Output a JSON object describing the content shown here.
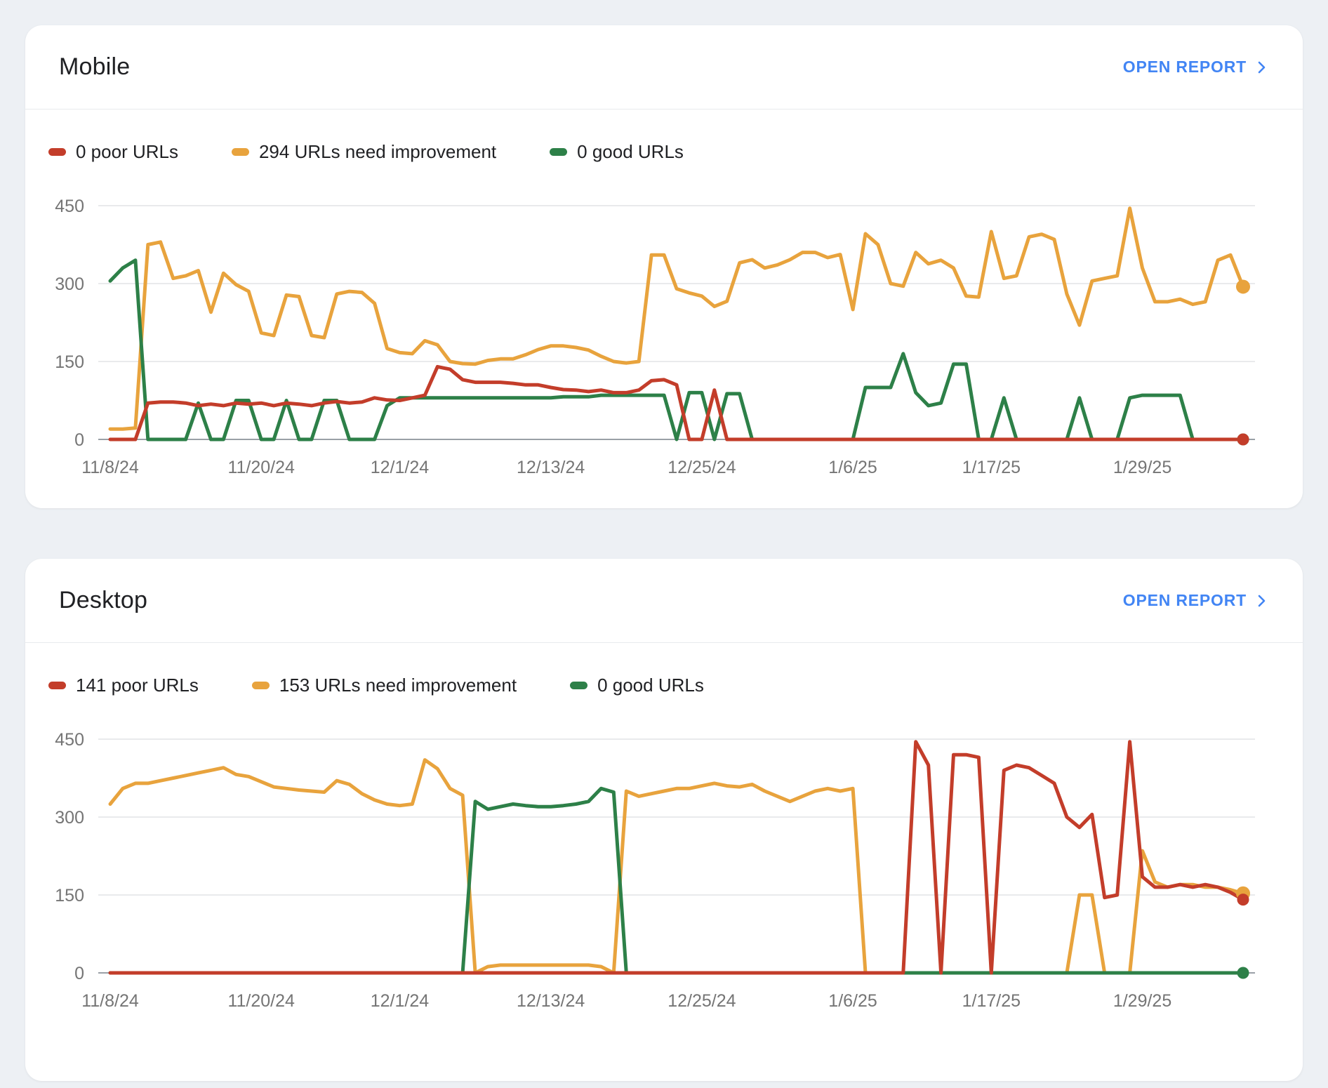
{
  "page": {
    "background_color": "#edf0f4"
  },
  "colors": {
    "poor": "#c33d2a",
    "need_improvement": "#e8a33d",
    "good": "#2d8048",
    "link_blue": "#4285f4",
    "axis_text": "#757575",
    "gridline": "#e9eaec",
    "zero_line": "#9aa0a6"
  },
  "cards": [
    {
      "title": "Mobile",
      "open_report_label": "OPEN REPORT",
      "legend": [
        {
          "label": "0 poor URLs",
          "color": "#c33d2a"
        },
        {
          "label": "294 URLs need improvement",
          "color": "#e8a33d"
        },
        {
          "label": "0 good URLs",
          "color": "#2d8048"
        }
      ],
      "chart_data": {
        "type": "line",
        "title": "Mobile Core Web Vitals URLs over time",
        "x_axis": {
          "tick_labels": [
            "11/8/24",
            "11/20/24",
            "12/1/24",
            "12/13/24",
            "12/25/24",
            "1/6/25",
            "1/17/25",
            "1/29/25"
          ],
          "tick_day_indices": [
            0,
            12,
            23,
            35,
            47,
            59,
            70,
            82
          ],
          "total_days": 90,
          "start_date": "11/8/24"
        },
        "y_axis": {
          "ticks": [
            0,
            150,
            300,
            450
          ],
          "min": 0,
          "max": 475,
          "grid": true
        },
        "series": [
          {
            "name": "URLs need improvement",
            "color": "#e8a33d",
            "dot_radius": 10,
            "final_value": 294,
            "values": [
              20,
              20,
              22,
              375,
              380,
              310,
              315,
              325,
              245,
              320,
              298,
              285,
              205,
              200,
              278,
              275,
              200,
              196,
              280,
              285,
              283,
              262,
              175,
              167,
              165,
              190,
              182,
              150,
              146,
              145,
              152,
              155,
              155,
              163,
              173,
              180,
              180,
              177,
              172,
              160,
              150,
              147,
              150,
              355,
              355,
              290,
              282,
              276,
              256,
              266,
              340,
              346,
              330,
              336,
              346,
              360,
              360,
              350,
              356,
              250,
              396,
              375,
              300,
              295,
              360,
              338,
              345,
              330,
              276,
              274,
              400,
              310,
              315,
              390,
              395,
              385,
              280,
              220,
              305,
              310,
              315,
              445,
              330,
              265,
              265,
              270,
              260,
              265,
              345,
              355,
              294
            ]
          },
          {
            "name": "good URLs",
            "color": "#2d8048",
            "dot_radius": 8.5,
            "final_value": 0,
            "values": [
              305,
              330,
              345,
              0,
              0,
              0,
              0,
              70,
              0,
              0,
              75,
              75,
              0,
              0,
              75,
              0,
              0,
              75,
              75,
              0,
              0,
              0,
              65,
              80,
              80,
              80,
              80,
              80,
              80,
              80,
              80,
              80,
              80,
              80,
              80,
              80,
              82,
              82,
              82,
              85,
              85,
              85,
              85,
              85,
              85,
              0,
              90,
              90,
              0,
              88,
              88,
              0,
              0,
              0,
              0,
              0,
              0,
              0,
              0,
              0,
              100,
              100,
              100,
              165,
              90,
              65,
              70,
              145,
              145,
              0,
              0,
              80,
              0,
              0,
              0,
              0,
              0,
              80,
              0,
              0,
              0,
              80,
              85,
              85,
              85,
              85,
              0,
              0,
              0,
              0,
              0
            ]
          },
          {
            "name": "poor URLs",
            "color": "#c33d2a",
            "dot_radius": 8.5,
            "final_value": 0,
            "values": [
              0,
              0,
              0,
              70,
              72,
              72,
              70,
              65,
              68,
              65,
              70,
              68,
              70,
              65,
              70,
              68,
              65,
              70,
              73,
              70,
              72,
              80,
              76,
              75,
              80,
              85,
              140,
              135,
              115,
              110,
              110,
              110,
              108,
              105,
              105,
              100,
              96,
              95,
              92,
              95,
              90,
              90,
              95,
              113,
              115,
              105,
              0,
              0,
              95,
              0,
              0,
              0,
              0,
              0,
              0,
              0,
              0,
              0,
              0,
              0,
              0,
              0,
              0,
              0,
              0,
              0,
              0,
              0,
              0,
              0,
              0,
              0,
              0,
              0,
              0,
              0,
              0,
              0,
              0,
              0,
              0,
              0,
              0,
              0,
              0,
              0,
              0,
              0,
              0,
              0,
              0
            ]
          }
        ]
      }
    },
    {
      "title": "Desktop",
      "open_report_label": "OPEN REPORT",
      "legend": [
        {
          "label": "141 poor URLs",
          "color": "#c33d2a"
        },
        {
          "label": "153 URLs need improvement",
          "color": "#e8a33d"
        },
        {
          "label": "0 good URLs",
          "color": "#2d8048"
        }
      ],
      "chart_data": {
        "type": "line",
        "title": "Desktop Core Web Vitals URLs over time",
        "x_axis": {
          "tick_labels": [
            "11/8/24",
            "11/20/24",
            "12/1/24",
            "12/13/24",
            "12/25/24",
            "1/6/25",
            "1/17/25",
            "1/29/25"
          ],
          "tick_day_indices": [
            0,
            12,
            23,
            35,
            47,
            59,
            70,
            82
          ],
          "total_days": 90,
          "start_date": "11/8/24"
        },
        "y_axis": {
          "ticks": [
            0,
            150,
            300,
            450
          ],
          "min": 0,
          "max": 475,
          "grid": true
        },
        "series": [
          {
            "name": "URLs need improvement",
            "color": "#e8a33d",
            "dot_radius": 10,
            "final_value": 153,
            "values": [
              325,
              355,
              365,
              365,
              370,
              375,
              380,
              385,
              390,
              395,
              382,
              378,
              368,
              358,
              355,
              352,
              350,
              348,
              370,
              363,
              345,
              333,
              325,
              322,
              325,
              410,
              393,
              355,
              342,
              0,
              12,
              15,
              15,
              15,
              15,
              15,
              15,
              15,
              15,
              12,
              0,
              350,
              340,
              345,
              350,
              355,
              355,
              360,
              365,
              360,
              358,
              363,
              350,
              340,
              330,
              340,
              350,
              355,
              350,
              355,
              0,
              0,
              0,
              0,
              0,
              0,
              0,
              0,
              0,
              0,
              0,
              0,
              0,
              0,
              0,
              0,
              0,
              150,
              150,
              0,
              0,
              0,
              235,
              175,
              165,
              170,
              170,
              165,
              165,
              160,
              153
            ]
          },
          {
            "name": "good URLs",
            "color": "#2d8048",
            "dot_radius": 8.5,
            "final_value": 0,
            "values": [
              0,
              0,
              0,
              0,
              0,
              0,
              0,
              0,
              0,
              0,
              0,
              0,
              0,
              0,
              0,
              0,
              0,
              0,
              0,
              0,
              0,
              0,
              0,
              0,
              0,
              0,
              0,
              0,
              0,
              330,
              315,
              320,
              325,
              322,
              320,
              320,
              322,
              325,
              330,
              355,
              348,
              0,
              0,
              0,
              0,
              0,
              0,
              0,
              0,
              0,
              0,
              0,
              0,
              0,
              0,
              0,
              0,
              0,
              0,
              0,
              0,
              0,
              0,
              0,
              0,
              0,
              0,
              0,
              0,
              0,
              0,
              0,
              0,
              0,
              0,
              0,
              0,
              0,
              0,
              0,
              0,
              0,
              0,
              0,
              0,
              0,
              0,
              0,
              0,
              0,
              0
            ]
          },
          {
            "name": "poor URLs",
            "color": "#c33d2a",
            "dot_radius": 8.5,
            "final_value": 141,
            "values": [
              0,
              0,
              0,
              0,
              0,
              0,
              0,
              0,
              0,
              0,
              0,
              0,
              0,
              0,
              0,
              0,
              0,
              0,
              0,
              0,
              0,
              0,
              0,
              0,
              0,
              0,
              0,
              0,
              0,
              0,
              0,
              0,
              0,
              0,
              0,
              0,
              0,
              0,
              0,
              0,
              0,
              0,
              0,
              0,
              0,
              0,
              0,
              0,
              0,
              0,
              0,
              0,
              0,
              0,
              0,
              0,
              0,
              0,
              0,
              0,
              0,
              0,
              0,
              0,
              445,
              400,
              0,
              420,
              420,
              415,
              0,
              390,
              400,
              395,
              380,
              365,
              300,
              280,
              305,
              145,
              150,
              445,
              185,
              165,
              165,
              170,
              165,
              170,
              165,
              155,
              141
            ]
          }
        ]
      }
    }
  ]
}
